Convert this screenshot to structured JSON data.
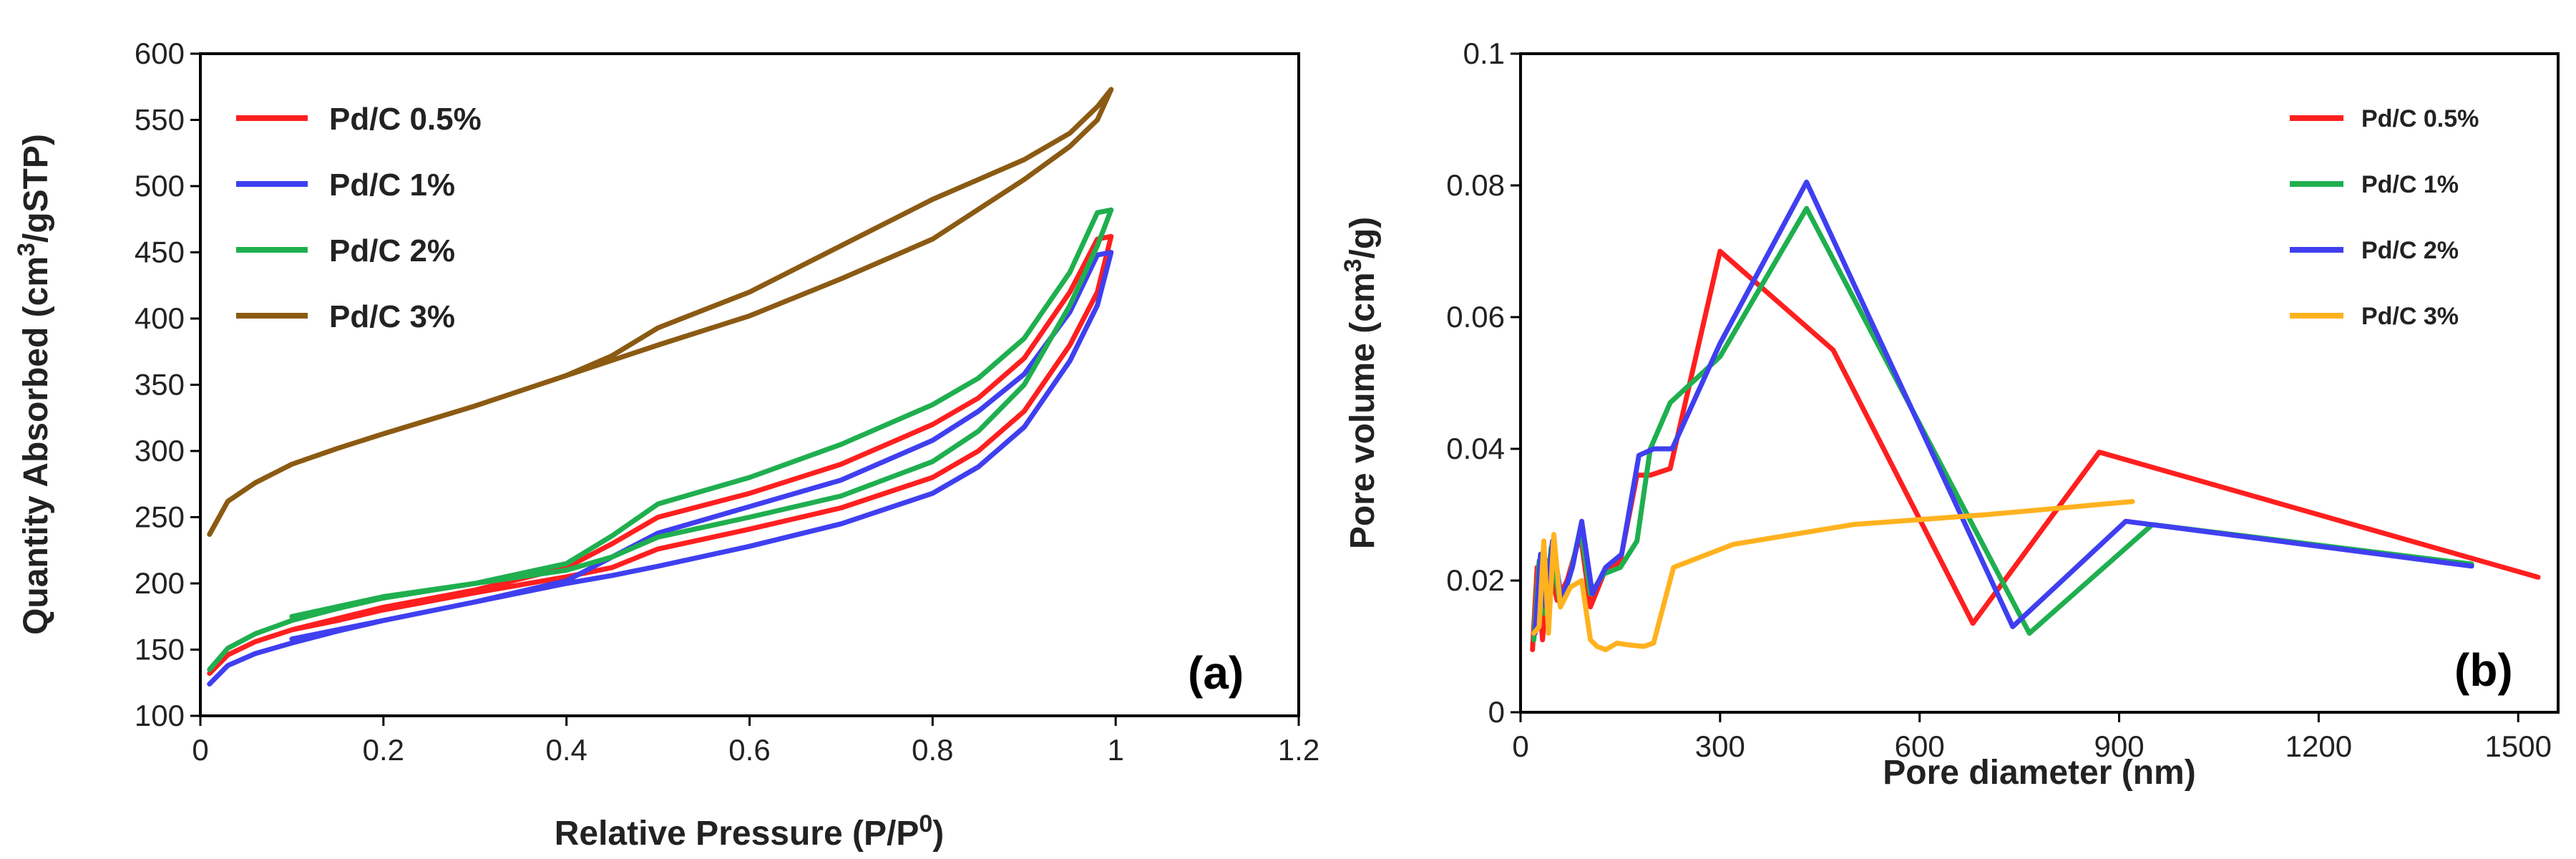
{
  "chart_data": [
    {
      "type": "line",
      "panel_label": "(a)",
      "xlabel": "Relative Pressure (P/P",
      "xlabel_sup": "0",
      "xlabel_suffix": ")",
      "ylabel": "Quantity Absorbed (cm",
      "ylabel_sup": "3",
      "ylabel_suffix": "/gSTP)",
      "xlim": [
        0,
        1.2
      ],
      "ylim": [
        100,
        600
      ],
      "xticks": [
        0,
        0.2,
        0.4,
        0.6,
        0.8,
        1,
        1.2
      ],
      "xtick_labels": [
        "0",
        "0.2",
        "0.4",
        "0.6",
        "0.8",
        "1",
        "1.2"
      ],
      "yticks": [
        100,
        150,
        200,
        250,
        300,
        350,
        400,
        450,
        500,
        550,
        600
      ],
      "ytick_labels": [
        "100",
        "150",
        "200",
        "250",
        "300",
        "350",
        "400",
        "450",
        "500",
        "550",
        "600"
      ],
      "legend_position": "top-left",
      "series": [
        {
          "name": "Pd/C 0.5%",
          "color": "#ff1f1f",
          "x": [
            0.01,
            0.03,
            0.06,
            0.1,
            0.15,
            0.2,
            0.3,
            0.4,
            0.45,
            0.5,
            0.6,
            0.7,
            0.8,
            0.85,
            0.9,
            0.95,
            0.98,
            0.995,
            0.98,
            0.95,
            0.9,
            0.85,
            0.8,
            0.7,
            0.6,
            0.5,
            0.45,
            0.4,
            0.3,
            0.2,
            0.1
          ],
          "y": [
            132,
            146,
            156,
            165,
            172,
            180,
            193,
            205,
            212,
            226,
            241,
            257,
            280,
            300,
            330,
            380,
            420,
            462,
            460,
            420,
            370,
            340,
            320,
            290,
            268,
            250,
            230,
            212,
            195,
            182,
            165
          ]
        },
        {
          "name": "Pd/C 1%",
          "color": "#3f3ff0",
          "x": [
            0.01,
            0.03,
            0.06,
            0.1,
            0.15,
            0.2,
            0.3,
            0.4,
            0.45,
            0.5,
            0.6,
            0.7,
            0.8,
            0.85,
            0.9,
            0.95,
            0.98,
            0.995,
            0.98,
            0.95,
            0.9,
            0.85,
            0.8,
            0.7,
            0.6,
            0.5,
            0.45,
            0.4,
            0.3,
            0.2,
            0.1
          ],
          "y": [
            124,
            138,
            147,
            155,
            164,
            172,
            186,
            200,
            206,
            213,
            228,
            245,
            268,
            288,
            318,
            368,
            410,
            450,
            448,
            405,
            358,
            330,
            308,
            278,
            258,
            238,
            220,
            202,
            186,
            172,
            158
          ]
        },
        {
          "name": "Pd/C 2%",
          "color": "#1faf4f",
          "x": [
            0.01,
            0.03,
            0.06,
            0.1,
            0.15,
            0.2,
            0.3,
            0.4,
            0.45,
            0.5,
            0.6,
            0.7,
            0.8,
            0.85,
            0.9,
            0.95,
            0.98,
            0.995,
            0.98,
            0.95,
            0.9,
            0.85,
            0.8,
            0.7,
            0.6,
            0.5,
            0.45,
            0.4,
            0.3,
            0.2,
            0.1
          ],
          "y": [
            135,
            151,
            162,
            172,
            181,
            189,
            200,
            210,
            220,
            235,
            250,
            266,
            292,
            315,
            350,
            410,
            455,
            482,
            480,
            435,
            385,
            355,
            335,
            305,
            280,
            260,
            236,
            215,
            200,
            190,
            175
          ]
        },
        {
          "name": "Pd/C 3%",
          "color": "#8b5a13",
          "x": [
            0.01,
            0.03,
            0.06,
            0.1,
            0.15,
            0.2,
            0.3,
            0.4,
            0.5,
            0.6,
            0.7,
            0.8,
            0.9,
            0.95,
            0.98,
            0.995,
            0.98,
            0.95,
            0.9,
            0.85,
            0.8,
            0.7,
            0.6,
            0.5,
            0.45,
            0.4
          ],
          "y": [
            237,
            262,
            276,
            290,
            302,
            313,
            334,
            357,
            380,
            402,
            430,
            460,
            505,
            530,
            550,
            573,
            560,
            540,
            520,
            505,
            490,
            455,
            420,
            393,
            372,
            357
          ]
        }
      ]
    },
    {
      "type": "line",
      "panel_label": "(b)",
      "xlabel": "Pore diameter (nm)",
      "ylabel": "Pore volume (cm",
      "ylabel_sup": "3",
      "ylabel_suffix": "/g)",
      "xlim": [
        0,
        1560
      ],
      "ylim": [
        0,
        0.1
      ],
      "xticks": [
        0,
        300,
        600,
        900,
        1200,
        1500
      ],
      "xtick_labels": [
        "0",
        "300",
        "600",
        "900",
        "1200",
        "1500"
      ],
      "yticks": [
        0,
        0.02,
        0.04,
        0.06,
        0.08,
        0.1
      ],
      "ytick_labels": [
        "0",
        "0.02",
        "0.04",
        "0.06",
        "0.08",
        "0.1"
      ],
      "legend_position": "top-right",
      "series": [
        {
          "name": "Pd/C 0.5%",
          "color": "#ff1f1f",
          "x": [
            18,
            25,
            33,
            42,
            55,
            70,
            90,
            105,
            125,
            150,
            175,
            195,
            225,
            300,
            470,
            680,
            870,
            1530
          ],
          "y": [
            0.0095,
            0.022,
            0.011,
            0.023,
            0.017,
            0.02,
            0.027,
            0.016,
            0.021,
            0.023,
            0.036,
            0.036,
            0.037,
            0.07,
            0.055,
            0.0135,
            0.0395,
            0.0205
          ]
        },
        {
          "name": "Pd/C 1%",
          "color": "#1faf4f",
          "x": [
            20,
            28,
            36,
            46,
            60,
            75,
            90,
            105,
            125,
            150,
            175,
            195,
            225,
            300,
            430,
            765,
            950,
            1430
          ],
          "y": [
            0.011,
            0.023,
            0.015,
            0.025,
            0.016,
            0.021,
            0.028,
            0.018,
            0.021,
            0.022,
            0.026,
            0.04,
            0.047,
            0.054,
            0.0765,
            0.012,
            0.0285,
            0.0225
          ]
        },
        {
          "name": "Pd/C 2%",
          "color": "#3f3ff0",
          "x": [
            22,
            30,
            38,
            48,
            62,
            78,
            92,
            108,
            128,
            152,
            178,
            200,
            228,
            300,
            430,
            740,
            910,
            1430
          ],
          "y": [
            0.012,
            0.024,
            0.016,
            0.026,
            0.017,
            0.022,
            0.029,
            0.018,
            0.022,
            0.024,
            0.039,
            0.04,
            0.04,
            0.056,
            0.0805,
            0.013,
            0.029,
            0.0222
          ]
        },
        {
          "name": "Pd/C 3%",
          "color": "#ffb21f",
          "x": [
            20,
            28,
            35,
            42,
            50,
            60,
            75,
            92,
            105,
            115,
            128,
            145,
            165,
            185,
            200,
            230,
            320,
            500,
            700,
            920
          ],
          "y": [
            0.012,
            0.013,
            0.026,
            0.012,
            0.027,
            0.016,
            0.019,
            0.02,
            0.011,
            0.01,
            0.0095,
            0.0105,
            0.0102,
            0.01,
            0.0105,
            0.022,
            0.0255,
            0.0285,
            0.03,
            0.032
          ]
        }
      ]
    }
  ]
}
